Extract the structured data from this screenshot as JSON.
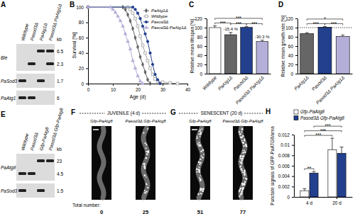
{
  "blots": [
    {
      "label": "A",
      "unit": "kb",
      "lanes": [
        "Wildtype",
        "Pasod3Δ",
        "PaAtg1Δ",
        "Pasod3Δ PaAtg1Δ"
      ],
      "rows": [
        {
          "name": "Ble",
          "markers": [
            {
              "kb": 6.5,
              "lanes": [
                false,
                false,
                true,
                true
              ]
            },
            {
              "kb": 2.3,
              "lanes": [
                false,
                true,
                false,
                true
              ]
            }
          ]
        },
        {
          "name": "PaSod3",
          "markers": [
            {
              "kb": 1.7,
              "lanes": [
                true,
                false,
                true,
                false
              ]
            }
          ]
        },
        {
          "name": "PaAtg1",
          "markers": [
            {
              "kb": 6,
              "lanes": [
                true,
                true,
                false,
                false
              ]
            }
          ]
        }
      ]
    },
    {
      "label": "E",
      "unit": "kb",
      "lanes": [
        "Wildtype",
        "Pasod3Δ",
        "Gfp-PaAtg8",
        "Pasod3Δ Gfp-PaAtg8"
      ],
      "rows": [
        {
          "name": "PaAtg8",
          "markers": [
            {
              "kb": 23,
              "lanes": [
                false,
                false,
                true,
                true
              ]
            },
            {
              "kb": 4.5,
              "lanes": [
                true,
                true,
                false,
                false
              ]
            }
          ]
        },
        {
          "name": "PaSod3",
          "markers": [
            {
              "kb": 1.5,
              "lanes": [
                true,
                false,
                true,
                false
              ]
            }
          ]
        }
      ]
    }
  ],
  "micrographs": [
    {
      "label": "F",
      "title": "JUVENILE (4 d)",
      "count_label": "Total number:",
      "images": [
        {
          "name": "Gfp-PaAtg8",
          "count": 0
        },
        {
          "name": "Pasod3Δ Gfp-PaAtg8",
          "count": 25
        }
      ]
    },
    {
      "label": "G",
      "title": "SENESCENT (20 d)",
      "images": [
        {
          "name": "Gfp-PaAtg8",
          "count": 51
        },
        {
          "name": "Pasod3Δ Gfp-PaAtg8",
          "count": 77
        }
      ]
    }
  ],
  "chart_data": [
    {
      "panel_label": "B",
      "type": "line",
      "x_label": "Age (d)",
      "y_label": "Survival [%]",
      "xlim": [
        0,
        40
      ],
      "xticks": [
        0,
        10,
        20,
        30,
        40
      ],
      "ylim": [
        0,
        100
      ],
      "yticks": [
        0,
        20,
        40,
        60,
        80,
        100
      ],
      "legend": "top-right",
      "series": [
        {
          "name": "PaAtg1Δ",
          "color": "#666666",
          "marker": "diamond",
          "x": [
            0,
            14,
            15,
            16,
            17,
            18,
            19,
            20,
            21,
            22,
            23,
            24,
            25
          ],
          "values": [
            100,
            100,
            97,
            90,
            82,
            72,
            60,
            48,
            35,
            25,
            15,
            5,
            0
          ]
        },
        {
          "name": "Wildtype",
          "color": "#a6a6a6",
          "marker": "open-square",
          "x": [
            0,
            16,
            17,
            18,
            19,
            20,
            21,
            22,
            23,
            24,
            25,
            26,
            27,
            28,
            30,
            33,
            36
          ],
          "values": [
            100,
            100,
            97,
            92,
            85,
            75,
            62,
            50,
            40,
            30,
            20,
            12,
            6,
            3,
            2,
            1,
            0
          ]
        },
        {
          "name": "Pasod3Δ",
          "color": "#23408e",
          "marker": "circle",
          "x": [
            0,
            18,
            19,
            20,
            21,
            22,
            23,
            24,
            25,
            26,
            27,
            28,
            29
          ],
          "values": [
            100,
            100,
            97,
            92,
            85,
            75,
            65,
            55,
            40,
            25,
            12,
            5,
            0
          ]
        },
        {
          "name": "Pasod3Δ PaAtg1Δ",
          "color": "#b4afd8",
          "marker": "triangle",
          "x": [
            0,
            9,
            10,
            11,
            12,
            13,
            14,
            15,
            16,
            17,
            18,
            19,
            20,
            21,
            22
          ],
          "values": [
            100,
            100,
            97,
            93,
            88,
            82,
            75,
            65,
            55,
            45,
            30,
            20,
            10,
            3,
            0
          ]
        }
      ]
    },
    {
      "panel_label": "C",
      "type": "bar",
      "y_label": "Relative mean lifespan [%]",
      "categories": [
        "Wildtype",
        "PaAtg1Δ",
        "Pasod3Δ",
        "Pasod3Δ PaAtg1Δ"
      ],
      "values": [
        100,
        84.6,
        100.5,
        69.7
      ],
      "errors": [
        4,
        5,
        2,
        3
      ],
      "colors": [
        "#ffffff",
        "#666666",
        "#23408e",
        "#b4afd8"
      ],
      "ylim": [
        0,
        120
      ],
      "yticks": [
        0,
        20,
        40,
        60,
        80,
        100,
        120
      ],
      "annotations": [
        {
          "text": "-15.4 %",
          "category": "PaAtg1Δ"
        },
        {
          "text": "-30.3 %",
          "category": "Pasod3Δ PaAtg1Δ"
        }
      ],
      "significance": [
        {
          "from": "Wildtype",
          "to": "PaAtg1Δ",
          "label": "***"
        },
        {
          "from": "PaAtg1Δ",
          "to": "Pasod3Δ",
          "label": "***"
        },
        {
          "from": "Pasod3Δ",
          "to": "Pasod3Δ PaAtg1Δ",
          "label": "***"
        },
        {
          "from": "Wildtype",
          "to": "Pasod3Δ PaAtg1Δ",
          "label": "***"
        }
      ]
    },
    {
      "panel_label": "D",
      "type": "bar",
      "y_label": "Relative mean growth rate [%]",
      "categories": [
        "PaAtg1Δ",
        "Pasod3Δ",
        "Pasod3Δ PaAtg1Δ"
      ],
      "values": [
        87,
        101,
        81
      ],
      "errors": [
        2,
        1.5,
        3
      ],
      "colors": [
        "#666666",
        "#23408e",
        "#b4afd8"
      ],
      "ylim": [
        0,
        120
      ],
      "yticks": [
        0,
        20,
        40,
        60,
        80,
        100,
        120
      ],
      "reference_value": 100,
      "significance": [
        {
          "from": "PaAtg1Δ",
          "to": "Pasod3Δ",
          "label": "***"
        },
        {
          "from": "Pasod3Δ",
          "to": "Pasod3Δ PaAtg1Δ",
          "label": "***"
        },
        {
          "from": "PaAtg1Δ",
          "to": "Pasod3Δ PaAtg1Δ",
          "label": "*"
        }
      ]
    },
    {
      "panel_label": "H",
      "type": "bar",
      "y_label": "Punctate signals of GFP-PaATG8/area",
      "categories": [
        "4 d",
        "20 d"
      ],
      "series": [
        {
          "name": "Gfp-PaAtg8",
          "color": "#ffffff",
          "values": [
            0.0012,
            0.0091
          ],
          "errors": [
            0.0004,
            0.0022
          ]
        },
        {
          "name": "Pasod3Δ Gfp-PaAtg8",
          "color": "#23408e",
          "values": [
            0.0046,
            0.0084
          ],
          "errors": [
            0.0003,
            0.0012
          ]
        }
      ],
      "ylim": [
        0,
        0.012
      ],
      "yticks": [
        0,
        0.002,
        0.004,
        0.006,
        0.008,
        0.01,
        0.012
      ],
      "legend": "top-left",
      "significance": [
        {
          "from": {
            "category": "4 d",
            "series": "Gfp-PaAtg8"
          },
          "to": {
            "category": "4 d",
            "series": "Pasod3Δ Gfp-PaAtg8"
          },
          "label": "**"
        },
        {
          "from": {
            "category": "4 d",
            "series": "Gfp-PaAtg8"
          },
          "to": {
            "category": "20 d",
            "series": "Gfp-PaAtg8"
          },
          "label": "***"
        },
        {
          "from": {
            "category": "4 d",
            "series": "Gfp-PaAtg8"
          },
          "to": {
            "category": "20 d",
            "series": "Pasod3Δ Gfp-PaAtg8"
          },
          "label": "***"
        },
        {
          "from": {
            "category": "4 d",
            "series": "Pasod3Δ Gfp-PaAtg8"
          },
          "to": {
            "category": "20 d",
            "series": "Pasod3Δ Gfp-PaAtg8"
          },
          "label": "***"
        }
      ]
    }
  ]
}
